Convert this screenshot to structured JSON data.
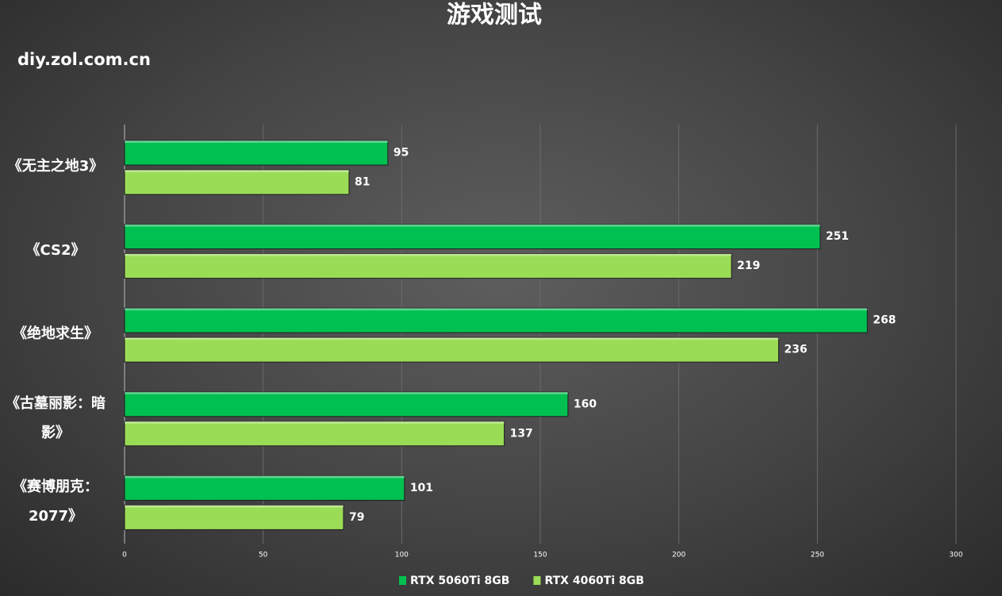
{
  "header": {
    "title": "游戏测试",
    "source": "diy.zol.com.cn"
  },
  "chart_data": {
    "type": "bar",
    "orientation": "horizontal",
    "categories": [
      "《无主之地3》",
      "《CS2》",
      "《绝地求生》",
      "《古墓丽影：暗影》",
      "《赛博朋克：2077》"
    ],
    "series": [
      {
        "name": "RTX 5060Ti 8GB",
        "color": "#00c050",
        "values": [
          95,
          251,
          268,
          160,
          101
        ]
      },
      {
        "name": "RTX 4060Ti 8GB",
        "color": "#9bdc57",
        "values": [
          81,
          219,
          236,
          137,
          79
        ]
      }
    ],
    "xlim": [
      0,
      300
    ],
    "xticks": [
      0,
      50,
      100,
      150,
      200,
      250,
      300
    ],
    "grid": true
  }
}
